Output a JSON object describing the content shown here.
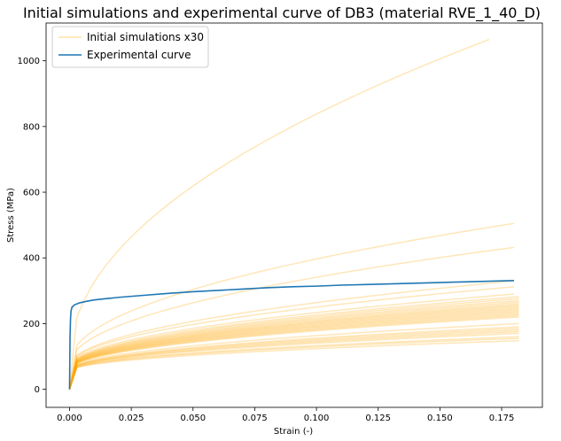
{
  "chart_data": {
    "type": "line",
    "title": "Initial simulations and experimental curve of DB3 (material RVE_1_40_D)",
    "xlabel": "Strain (-)",
    "ylabel": "Stress (MPa)",
    "xlim": [
      -0.0095,
      0.1915
    ],
    "ylim": [
      -55,
      1115
    ],
    "xticks": [
      0.0,
      0.025,
      0.05,
      0.075,
      0.1,
      0.125,
      0.15,
      0.175
    ],
    "xtick_labels": [
      "0.000",
      "0.025",
      "0.050",
      "0.075",
      "0.100",
      "0.125",
      "0.150",
      "0.175"
    ],
    "yticks": [
      0,
      200,
      400,
      600,
      800,
      1000
    ],
    "ytick_labels": [
      "0",
      "200",
      "400",
      "600",
      "800",
      "1000"
    ],
    "grid": false,
    "legend_position": "top-left",
    "legend": [
      {
        "label": "Initial simulations x30",
        "color": "#ffe4a8"
      },
      {
        "label": "Experimental curve",
        "color": "#1f77b4"
      }
    ],
    "colors": {
      "simulations": "#ffa500",
      "experimental": "#1f77b4"
    },
    "series": [
      {
        "role": "simulations",
        "power_law_curves": [
          {
            "y0": 90,
            "end_x": 0.17,
            "end_y": 1065
          },
          {
            "y0": 80,
            "end_x": 0.18,
            "end_y": 505
          },
          {
            "y0": 75,
            "end_x": 0.18,
            "end_y": 432
          },
          {
            "y0": 70,
            "end_x": 0.18,
            "end_y": 330
          },
          {
            "y0": 70,
            "end_x": 0.18,
            "end_y": 312
          },
          {
            "y0": 68,
            "end_x": 0.18,
            "end_y": 290
          },
          {
            "y0": 66,
            "end_x": 0.182,
            "end_y": 282
          },
          {
            "y0": 65,
            "end_x": 0.182,
            "end_y": 276
          },
          {
            "y0": 64,
            "end_x": 0.182,
            "end_y": 270
          },
          {
            "y0": 64,
            "end_x": 0.182,
            "end_y": 265
          },
          {
            "y0": 63,
            "end_x": 0.182,
            "end_y": 260
          },
          {
            "y0": 62,
            "end_x": 0.182,
            "end_y": 256
          },
          {
            "y0": 62,
            "end_x": 0.182,
            "end_y": 252
          },
          {
            "y0": 61,
            "end_x": 0.182,
            "end_y": 248
          },
          {
            "y0": 61,
            "end_x": 0.182,
            "end_y": 244
          },
          {
            "y0": 60,
            "end_x": 0.182,
            "end_y": 240
          },
          {
            "y0": 60,
            "end_x": 0.182,
            "end_y": 236
          },
          {
            "y0": 60,
            "end_x": 0.182,
            "end_y": 232
          },
          {
            "y0": 59,
            "end_x": 0.182,
            "end_y": 228
          },
          {
            "y0": 59,
            "end_x": 0.182,
            "end_y": 224
          },
          {
            "y0": 58,
            "end_x": 0.182,
            "end_y": 220
          },
          {
            "y0": 58,
            "end_x": 0.182,
            "end_y": 200
          },
          {
            "y0": 57,
            "end_x": 0.182,
            "end_y": 190
          },
          {
            "y0": 57,
            "end_x": 0.182,
            "end_y": 185
          },
          {
            "y0": 56,
            "end_x": 0.182,
            "end_y": 180
          },
          {
            "y0": 56,
            "end_x": 0.182,
            "end_y": 175
          },
          {
            "y0": 55,
            "end_x": 0.182,
            "end_y": 170
          },
          {
            "y0": 55,
            "end_x": 0.182,
            "end_y": 160
          },
          {
            "y0": 55,
            "end_x": 0.182,
            "end_y": 155
          },
          {
            "y0": 54,
            "end_x": 0.182,
            "end_y": 148
          }
        ]
      },
      {
        "role": "experimental",
        "x": [
          0.0,
          0.0001,
          0.0002,
          0.0004,
          0.0006,
          0.001,
          0.002,
          0.004,
          0.007,
          0.01,
          0.015,
          0.02,
          0.03,
          0.04,
          0.05,
          0.06,
          0.07,
          0.08,
          0.09,
          0.1,
          0.11,
          0.12,
          0.13,
          0.14,
          0.15,
          0.16,
          0.17,
          0.18
        ],
        "y": [
          0,
          80,
          160,
          215,
          238,
          250,
          257,
          263,
          268,
          272,
          276,
          280,
          286,
          292,
          297,
          301,
          305,
          309,
          312,
          314,
          317,
          319,
          321,
          323,
          325,
          327,
          329,
          331
        ]
      }
    ]
  }
}
